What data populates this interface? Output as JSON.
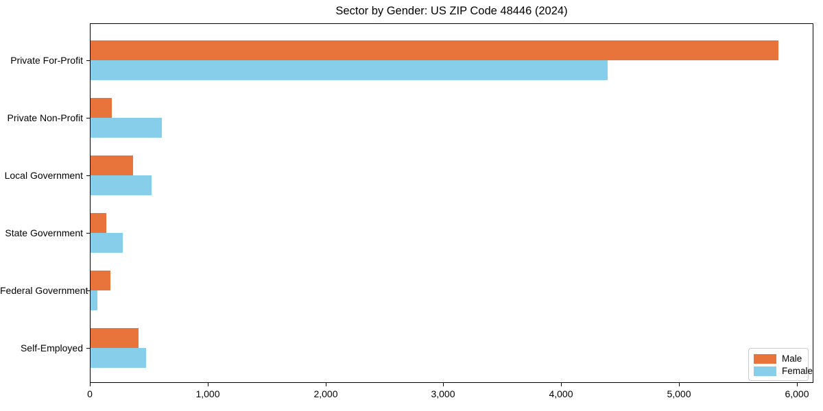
{
  "chart_data": {
    "type": "bar",
    "orientation": "horizontal",
    "title": "Sector by Gender: US ZIP Code 48446 (2024)",
    "categories": [
      "Private For-Profit",
      "Private Non-Profit",
      "Local Government",
      "State Government",
      "Federal Government",
      "Self-Employed"
    ],
    "series": [
      {
        "name": "Male",
        "color": "#e8743b",
        "values": [
          5845,
          185,
          365,
          140,
          175,
          415
        ]
      },
      {
        "name": "Female",
        "color": "#87ceeb",
        "values": [
          4395,
          610,
          525,
          280,
          65,
          475
        ]
      }
    ],
    "xlabel": "",
    "ylabel": "",
    "xlim": [
      0,
      6140
    ],
    "xticks": [
      0,
      1000,
      2000,
      3000,
      4000,
      5000,
      6000
    ],
    "xtick_labels": [
      "0",
      "1,000",
      "2,000",
      "3,000",
      "4,000",
      "5,000",
      "6,000"
    ],
    "grid": false,
    "legend": {
      "position": "lower right",
      "entries": [
        "Male",
        "Female"
      ]
    }
  },
  "colors": {
    "axis": "#000000",
    "text": "#000000",
    "legend_border": "#cccccc",
    "background": "#ffffff"
  }
}
